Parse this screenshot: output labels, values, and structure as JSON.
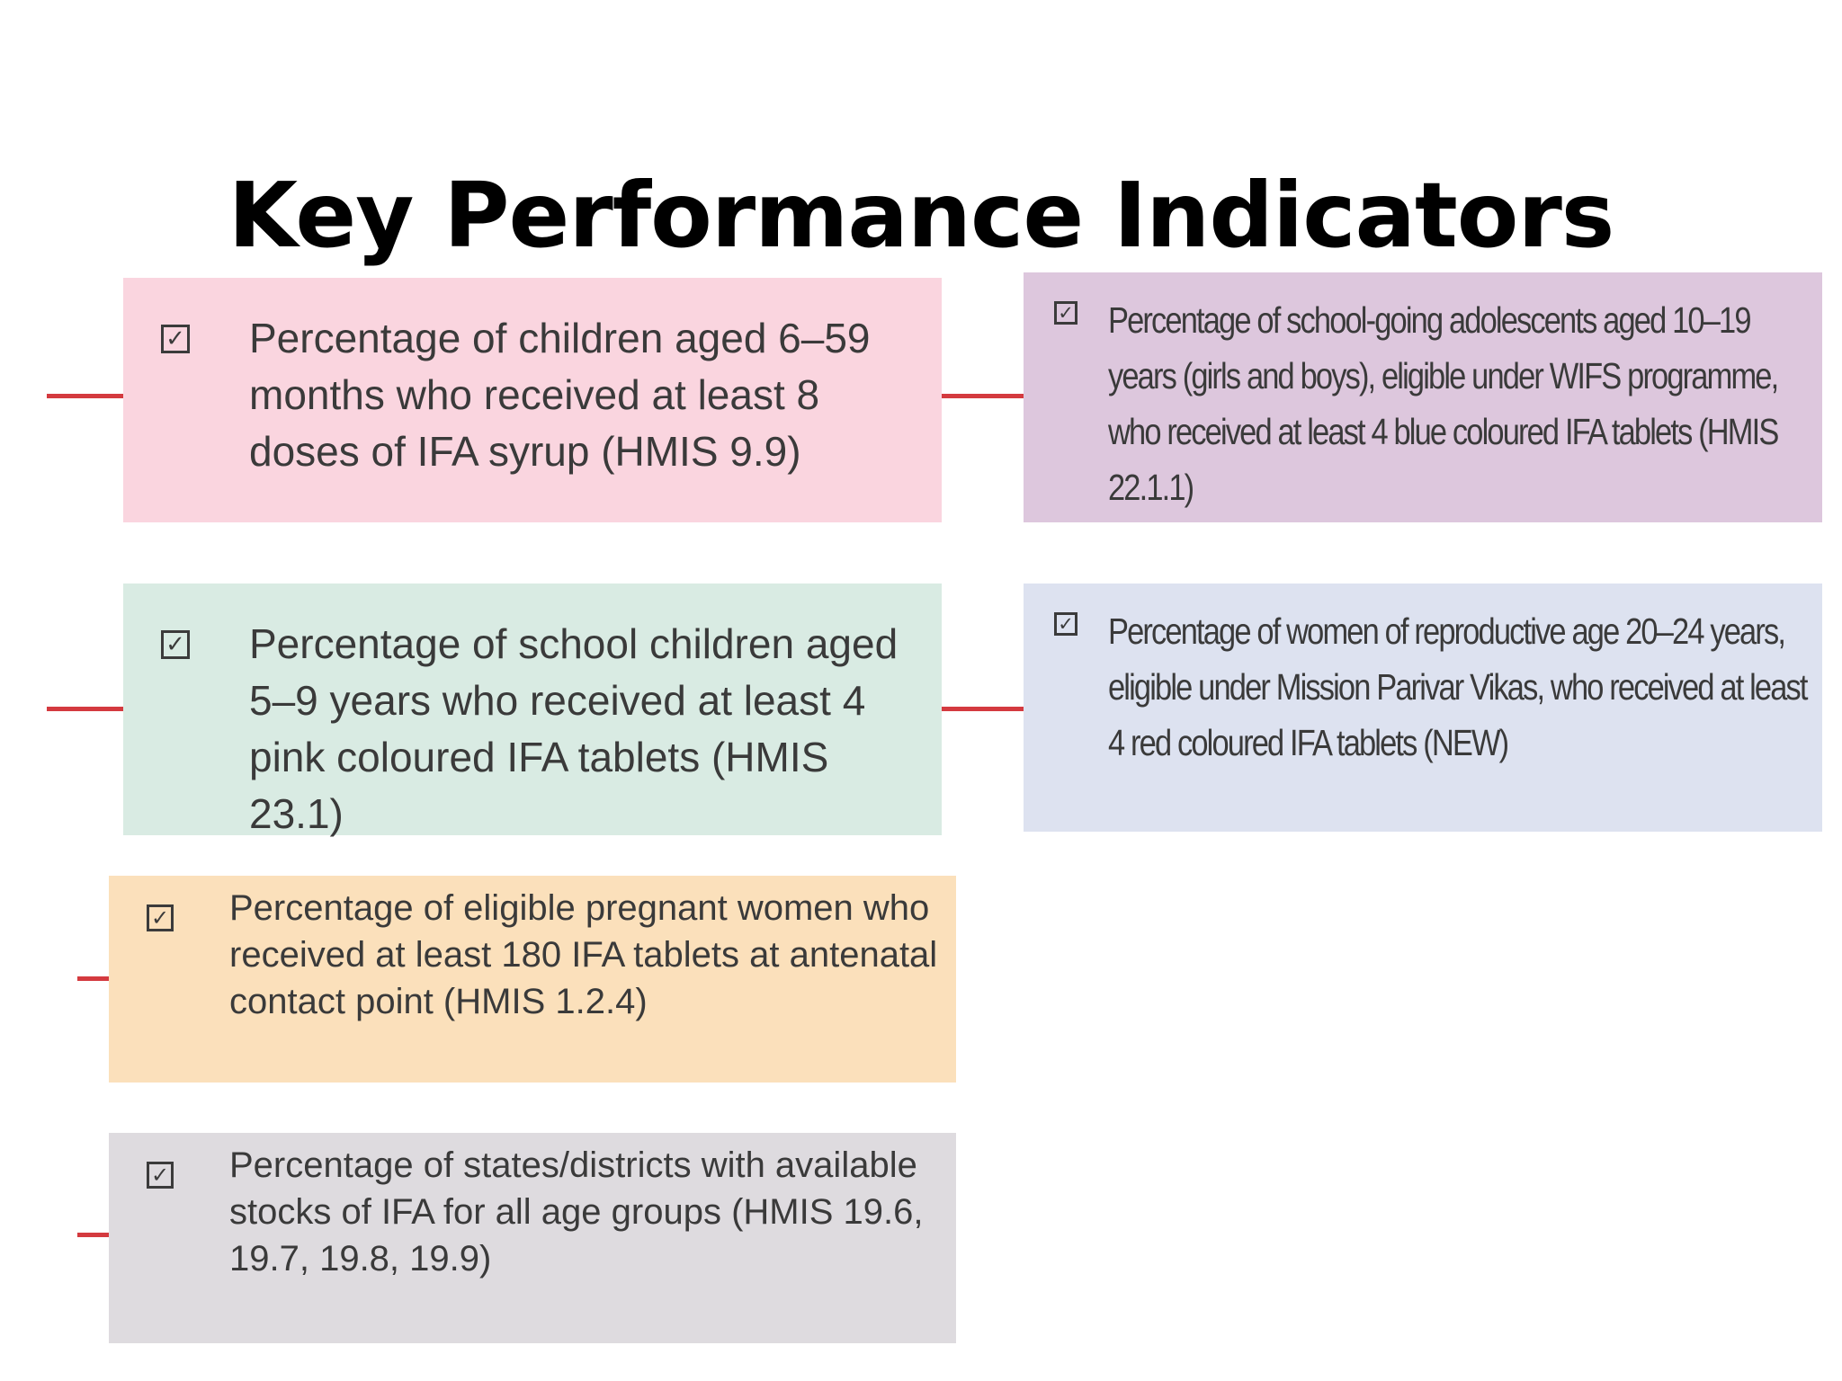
{
  "title": "Key Performance Indicators",
  "checkbox_glyph": "✓",
  "colors": {
    "pink": "#fad5df",
    "mint": "#d9ebe3",
    "peach": "#fbe0bb",
    "grey": "#dedbdf",
    "mauve": "#ddc7dd",
    "lavender": "#dde2f0",
    "connector_red": "#d43a3f"
  },
  "indicators": [
    {
      "text": "Percentage of children aged 6–59 months who received at least 8 doses of IFA syrup (HMIS 9.9)",
      "color": "pink"
    },
    {
      "text": "Percentage of school children aged 5–9 years who received at least 4 pink coloured IFA tablets (HMIS 23.1)",
      "color": "mint"
    },
    {
      "text": "Percentage of eligible pregnant women who received at least 180 IFA tablets at antenatal contact point (HMIS 1.2.4)",
      "color": "peach"
    },
    {
      "text": "Percentage of states/districts with available stocks of IFA for all age groups (HMIS 19.6, 19.7, 19.8, 19.9)",
      "color": "grey"
    },
    {
      "text": "Percentage of school-going adolescents aged 10–19 years (girls and boys), eligible under WIFS programme, who received at least 4 blue coloured IFA tablets (HMIS 22.1.1)",
      "color": "mauve"
    },
    {
      "text": "Percentage of women of reproductive age 20–24 years, eligible under Mission Parivar Vikas, who received at least 4 red coloured IFA tablets (NEW)",
      "color": "lavender"
    }
  ]
}
